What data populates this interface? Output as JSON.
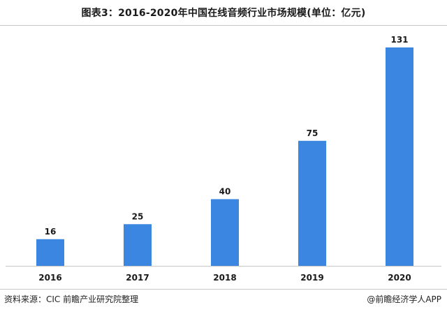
{
  "header": {
    "title": "图表3：2016-2020年中国在线音频行业市场规模(单位：亿元)"
  },
  "footer": {
    "source": "资料来源：CIC 前瞻产业研究院整理",
    "credit": "@前瞻经济学人APP"
  },
  "colors": {
    "bar": "#3a86e0",
    "axis": "#c8c8c8",
    "text": "#1a1a1a"
  },
  "chart_data": {
    "type": "bar",
    "categories": [
      "2016",
      "2017",
      "2018",
      "2019",
      "2020"
    ],
    "values": [
      16,
      25,
      40,
      75,
      131
    ],
    "data_labels": [
      "16",
      "25",
      "40",
      "75",
      "131"
    ],
    "title": "图表3：2016-2020年中国在线音频行业市场规模(单位：亿元)",
    "xlabel": "",
    "ylabel": "",
    "ylim": [
      0,
      131
    ],
    "grid": false,
    "legend": "none"
  }
}
